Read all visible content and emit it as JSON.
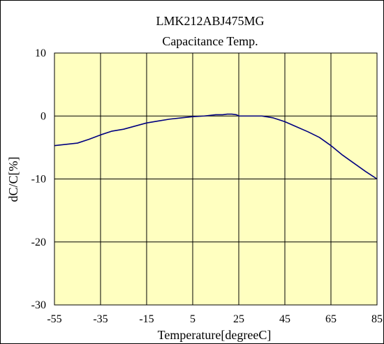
{
  "chart_data": {
    "type": "line",
    "title": "LMK212ABJ475MG",
    "subtitle": "Capacitance Temp.",
    "xlabel": "Temperature[degreeC]",
    "ylabel": "dC/C[%]",
    "xlim": [
      -55,
      85
    ],
    "ylim": [
      -30,
      10
    ],
    "xticks": [
      -55,
      -35,
      -15,
      5,
      25,
      45,
      65,
      85
    ],
    "yticks": [
      10,
      0,
      -10,
      -20,
      -30
    ],
    "grid": true,
    "legend": "none",
    "colors": {
      "plot_bg": "#FFFFC0",
      "line": "#000080",
      "grid": "#000000"
    },
    "series": [
      {
        "x": [
          -55,
          -45,
          -40,
          -35,
          -30,
          -25,
          -20,
          -15,
          -10,
          -5,
          0,
          5,
          10,
          15,
          18,
          20,
          22,
          24,
          25,
          30,
          35,
          40,
          45,
          50,
          55,
          60,
          65,
          70,
          75,
          80,
          85
        ],
        "values": [
          -4.7,
          -4.3,
          -3.7,
          -3.0,
          -2.4,
          -2.1,
          -1.6,
          -1.1,
          -0.8,
          -0.5,
          -0.3,
          -0.1,
          0.0,
          0.2,
          0.2,
          0.3,
          0.3,
          0.2,
          0.0,
          0.0,
          0.0,
          -0.3,
          -0.9,
          -1.7,
          -2.5,
          -3.4,
          -4.7,
          -6.2,
          -7.5,
          -8.8,
          -10.0
        ]
      }
    ]
  }
}
